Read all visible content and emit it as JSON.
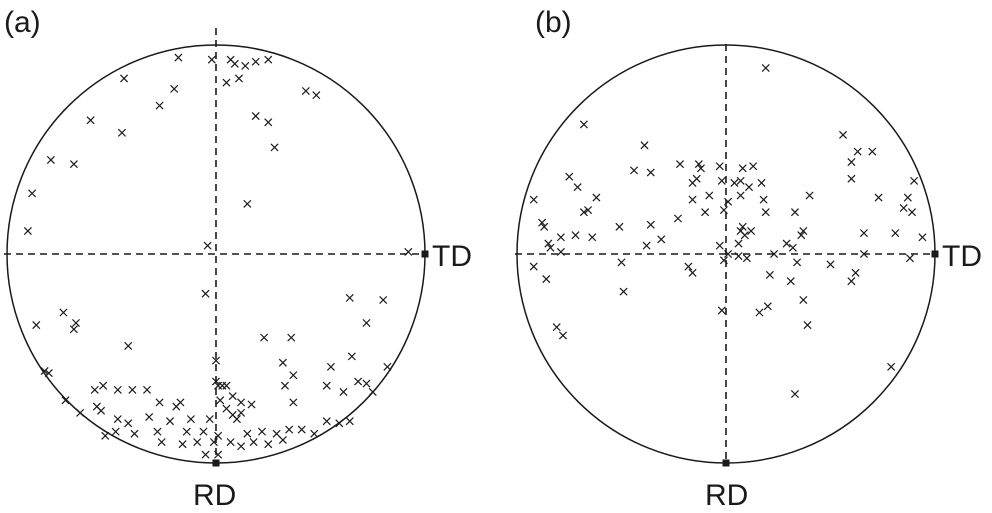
{
  "chart_data": [
    {
      "type": "scatter",
      "panel_label": "(a)",
      "x_axis_label": "TD",
      "y_axis_label": "RD",
      "xlim": [
        -1,
        1
      ],
      "ylim": [
        -1,
        1
      ],
      "grid": false,
      "points": [
        [
          -0.18,
          0.94
        ],
        [
          -0.02,
          0.93
        ],
        [
          0.07,
          0.93
        ],
        [
          0.09,
          0.91
        ],
        [
          0.19,
          0.92
        ],
        [
          0.14,
          0.9
        ],
        [
          0.25,
          0.93
        ],
        [
          -0.44,
          0.84
        ],
        [
          -0.2,
          0.79
        ],
        [
          0.11,
          0.84
        ],
        [
          0.05,
          0.82
        ],
        [
          0.43,
          0.78
        ],
        [
          0.48,
          0.76
        ],
        [
          -0.27,
          0.71
        ],
        [
          -0.6,
          0.64
        ],
        [
          -0.45,
          0.58
        ],
        [
          0.19,
          0.66
        ],
        [
          0.25,
          0.63
        ],
        [
          0.28,
          0.51
        ],
        [
          -0.79,
          0.45
        ],
        [
          -0.68,
          0.43
        ],
        [
          -0.88,
          0.29
        ],
        [
          0.15,
          0.24
        ],
        [
          -0.9,
          0.11
        ],
        [
          -0.04,
          0.04
        ],
        [
          0.92,
          0.01
        ],
        [
          -0.05,
          -0.19
        ],
        [
          0.64,
          -0.21
        ],
        [
          0.8,
          -0.22
        ],
        [
          -0.73,
          -0.28
        ],
        [
          -0.67,
          -0.33
        ],
        [
          -0.68,
          -0.36
        ],
        [
          0.72,
          -0.33
        ],
        [
          -0.86,
          -0.34
        ],
        [
          -0.42,
          -0.44
        ],
        [
          0.23,
          -0.4
        ],
        [
          0.36,
          -0.4
        ],
        [
          0.65,
          -0.49
        ],
        [
          0.0,
          -0.51
        ],
        [
          0.32,
          -0.52
        ],
        [
          0.55,
          -0.54
        ],
        [
          -0.82,
          -0.56
        ],
        [
          -0.8,
          -0.57
        ],
        [
          0.37,
          -0.58
        ],
        [
          0.82,
          -0.54
        ],
        [
          0.0,
          -0.61
        ],
        [
          0.01,
          -0.63
        ],
        [
          0.03,
          -0.63
        ],
        [
          0.05,
          -0.63
        ],
        [
          0.33,
          -0.63
        ],
        [
          0.53,
          -0.63
        ],
        [
          0.68,
          -0.61
        ],
        [
          0.72,
          -0.62
        ],
        [
          -0.54,
          -0.63
        ],
        [
          -0.47,
          -0.65
        ],
        [
          -0.4,
          -0.65
        ],
        [
          -0.33,
          -0.65
        ],
        [
          -0.58,
          -0.65
        ],
        [
          -0.72,
          -0.7
        ],
        [
          0.61,
          -0.66
        ],
        [
          0.08,
          -0.68
        ],
        [
          0.02,
          -0.7
        ],
        [
          0.37,
          -0.71
        ],
        [
          0.75,
          -0.66
        ],
        [
          -0.57,
          -0.73
        ],
        [
          -0.27,
          -0.71
        ],
        [
          -0.19,
          -0.73
        ],
        [
          -0.17,
          -0.71
        ],
        [
          0.12,
          -0.71
        ],
        [
          0.17,
          -0.72
        ],
        [
          -0.55,
          -0.75
        ],
        [
          -0.65,
          -0.76
        ],
        [
          0.12,
          -0.76
        ],
        [
          0.08,
          -0.77
        ],
        [
          0.05,
          -0.74
        ],
        [
          -0.47,
          -0.79
        ],
        [
          -0.42,
          -0.81
        ],
        [
          -0.32,
          -0.78
        ],
        [
          -0.22,
          -0.8
        ],
        [
          -0.12,
          -0.79
        ],
        [
          -0.03,
          -0.79
        ],
        [
          0.1,
          -0.79
        ],
        [
          0.53,
          -0.8
        ],
        [
          0.59,
          -0.81
        ],
        [
          0.64,
          -0.8
        ],
        [
          -0.48,
          -0.85
        ],
        [
          -0.39,
          -0.86
        ],
        [
          -0.28,
          -0.85
        ],
        [
          -0.14,
          -0.85
        ],
        [
          -0.06,
          -0.85
        ],
        [
          0.01,
          -0.87
        ],
        [
          0.15,
          -0.86
        ],
        [
          0.22,
          -0.85
        ],
        [
          0.29,
          -0.86
        ],
        [
          0.35,
          -0.84
        ],
        [
          0.41,
          -0.84
        ],
        [
          0.47,
          -0.86
        ],
        [
          -0.53,
          -0.87
        ],
        [
          -0.26,
          -0.9
        ],
        [
          -0.16,
          -0.91
        ],
        [
          -0.09,
          -0.9
        ],
        [
          -0.01,
          -0.9
        ],
        [
          0.07,
          -0.9
        ],
        [
          0.12,
          -0.92
        ],
        [
          0.18,
          -0.9
        ],
        [
          0.25,
          -0.91
        ],
        [
          0.32,
          -0.89
        ],
        [
          -0.05,
          -0.96
        ],
        [
          0.01,
          -0.96
        ]
      ]
    },
    {
      "type": "scatter",
      "panel_label": "(b)",
      "x_axis_label": "TD",
      "y_axis_label": "RD",
      "xlim": [
        -1,
        1
      ],
      "ylim": [
        -1,
        1
      ],
      "grid": false,
      "points": [
        [
          0.19,
          0.89
        ],
        [
          -0.68,
          0.62
        ],
        [
          0.56,
          0.57
        ],
        [
          -0.39,
          0.52
        ],
        [
          0.63,
          0.49
        ],
        [
          0.7,
          0.49
        ],
        [
          0.6,
          0.44
        ],
        [
          -0.75,
          0.37
        ],
        [
          -0.44,
          0.4
        ],
        [
          -0.36,
          0.39
        ],
        [
          -0.22,
          0.43
        ],
        [
          -0.13,
          0.43
        ],
        [
          -0.12,
          0.41
        ],
        [
          -0.03,
          0.42
        ],
        [
          0.08,
          0.41
        ],
        [
          0.13,
          0.42
        ],
        [
          -0.14,
          0.36
        ],
        [
          -0.16,
          0.34
        ],
        [
          -0.02,
          0.35
        ],
        [
          0.04,
          0.34
        ],
        [
          0.07,
          0.35
        ],
        [
          0.11,
          0.32
        ],
        [
          0.17,
          0.34
        ],
        [
          0.6,
          0.36
        ],
        [
          0.9,
          0.35
        ],
        [
          -0.71,
          0.32
        ],
        [
          -0.08,
          0.28
        ],
        [
          0.07,
          0.28
        ],
        [
          0.01,
          0.25
        ],
        [
          -0.62,
          0.27
        ],
        [
          -0.16,
          0.26
        ],
        [
          -0.92,
          0.26
        ],
        [
          0.18,
          0.26
        ],
        [
          0.4,
          0.28
        ],
        [
          0.73,
          0.27
        ],
        [
          0.87,
          0.27
        ],
        [
          0.85,
          0.22
        ],
        [
          0.89,
          0.2
        ],
        [
          -0.68,
          0.2
        ],
        [
          -0.66,
          0.21
        ],
        [
          -0.01,
          0.21
        ],
        [
          -0.1,
          0.2
        ],
        [
          0.19,
          0.2
        ],
        [
          0.33,
          0.2
        ],
        [
          -0.88,
          0.15
        ],
        [
          -0.87,
          0.13
        ],
        [
          -0.51,
          0.13
        ],
        [
          -0.36,
          0.14
        ],
        [
          -0.23,
          0.17
        ],
        [
          0.07,
          0.11
        ],
        [
          0.08,
          0.13
        ],
        [
          0.12,
          0.11
        ],
        [
          0.09,
          0.09
        ],
        [
          0.37,
          0.11
        ],
        [
          0.36,
          0.09
        ],
        [
          0.66,
          0.1
        ],
        [
          0.81,
          0.1
        ],
        [
          0.94,
          0.08
        ],
        [
          -0.79,
          0.08
        ],
        [
          -0.72,
          0.09
        ],
        [
          -0.64,
          0.08
        ],
        [
          -0.31,
          0.07
        ],
        [
          -0.03,
          0.04
        ],
        [
          0.06,
          0.05
        ],
        [
          0.29,
          0.05
        ],
        [
          0.32,
          0.03
        ],
        [
          -0.85,
          0.05
        ],
        [
          -0.38,
          0.04
        ],
        [
          -0.84,
          0.03
        ],
        [
          -0.79,
          0.01
        ],
        [
          0.01,
          0.0
        ],
        [
          0.06,
          -0.01
        ],
        [
          0.1,
          -0.02
        ],
        [
          0.23,
          0.0
        ],
        [
          0.34,
          -0.04
        ],
        [
          0.66,
          0.0
        ],
        [
          0.88,
          -0.02
        ],
        [
          -0.01,
          -0.03
        ],
        [
          -0.5,
          -0.04
        ],
        [
          -0.92,
          -0.06
        ],
        [
          0.5,
          -0.05
        ],
        [
          -0.18,
          -0.06
        ],
        [
          -0.16,
          -0.09
        ],
        [
          0.21,
          -0.1
        ],
        [
          0.31,
          -0.13
        ],
        [
          0.62,
          -0.09
        ],
        [
          0.6,
          -0.13
        ],
        [
          -0.86,
          -0.12
        ],
        [
          -0.49,
          -0.18
        ],
        [
          0.37,
          -0.22
        ],
        [
          0.2,
          -0.25
        ],
        [
          0.16,
          -0.28
        ],
        [
          -0.02,
          -0.27
        ],
        [
          0.39,
          -0.34
        ],
        [
          -0.81,
          -0.35
        ],
        [
          -0.78,
          -0.39
        ],
        [
          0.79,
          -0.54
        ],
        [
          0.33,
          -0.67
        ]
      ]
    }
  ]
}
